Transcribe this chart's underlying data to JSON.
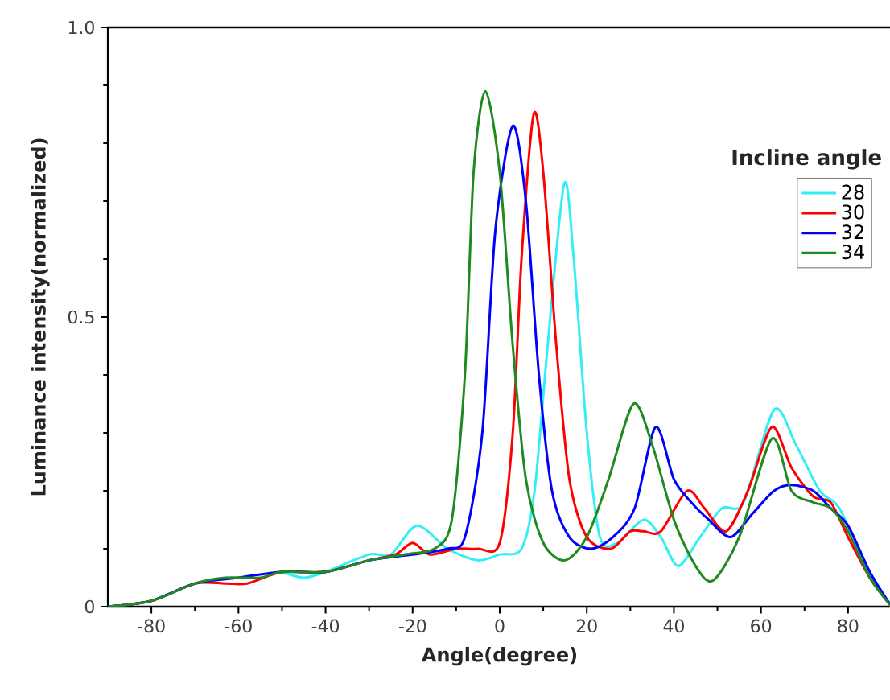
{
  "chart_data": {
    "type": "line",
    "xlabel": "Angle(degree)",
    "ylabel": "Luminance intensity(normalized)",
    "legend_title": "Incline angle",
    "xlim": [
      -90,
      90
    ],
    "xticks": [
      -80,
      -60,
      -40,
      -20,
      0,
      20,
      40,
      60,
      80
    ],
    "ylim": [
      0,
      1.0
    ],
    "yticks": [
      0,
      0.5,
      {
        "value": 1.0,
        "label": "1.0"
      }
    ],
    "legend": "top right",
    "grid": false,
    "series": [
      {
        "name": "28",
        "color": "#33eef5",
        "x": [
          -50,
          -45,
          -40,
          -30,
          -25,
          -19,
          -12,
          -5,
          0,
          5,
          8,
          11,
          14.8,
          17,
          20,
          23,
          27,
          33,
          37,
          41,
          46,
          51,
          56,
          63,
          68,
          73.5,
          78,
          84,
          90
        ],
        "values": [
          0.06,
          0.05,
          0.06,
          0.09,
          0.09,
          0.14,
          0.1,
          0.08,
          0.09,
          0.1,
          0.2,
          0.45,
          0.73,
          0.6,
          0.3,
          0.12,
          0.11,
          0.15,
          0.12,
          0.07,
          0.12,
          0.17,
          0.18,
          0.34,
          0.28,
          0.2,
          0.17,
          0.07,
          0
        ]
      },
      {
        "name": "30",
        "color": "#ff0000",
        "x": [
          -90,
          -80,
          -70,
          -63,
          -58,
          -50,
          -40,
          -30,
          -24,
          -20,
          -16,
          -10,
          -5,
          0,
          3,
          5,
          7.8,
          10,
          13,
          16,
          20,
          25.5,
          30,
          33,
          37,
          43,
          47,
          52,
          57,
          62.5,
          67,
          72,
          76,
          80,
          85,
          90
        ],
        "values": [
          0,
          0.01,
          0.04,
          0.04,
          0.04,
          0.06,
          0.06,
          0.08,
          0.09,
          0.11,
          0.09,
          0.1,
          0.1,
          0.11,
          0.3,
          0.6,
          0.85,
          0.75,
          0.45,
          0.22,
          0.12,
          0.1,
          0.13,
          0.13,
          0.13,
          0.2,
          0.17,
          0.13,
          0.2,
          0.31,
          0.24,
          0.19,
          0.18,
          0.12,
          0.05,
          0
        ]
      },
      {
        "name": "32",
        "color": "#0000ff",
        "x": [
          -90,
          -80,
          -70,
          -60,
          -50,
          -40,
          -30,
          -20,
          -12,
          -8,
          -4,
          -1,
          3,
          6,
          9,
          12,
          16,
          21,
          26,
          31,
          35.8,
          40,
          44,
          48,
          53,
          58,
          63,
          67,
          72,
          76,
          80,
          85,
          90
        ],
        "values": [
          0,
          0.01,
          0.04,
          0.05,
          0.06,
          0.06,
          0.08,
          0.09,
          0.1,
          0.12,
          0.3,
          0.65,
          0.83,
          0.7,
          0.4,
          0.2,
          0.12,
          0.1,
          0.12,
          0.17,
          0.31,
          0.22,
          0.18,
          0.15,
          0.12,
          0.16,
          0.2,
          0.21,
          0.2,
          0.17,
          0.14,
          0.06,
          0
        ]
      },
      {
        "name": "34",
        "color": "#1f8a1f",
        "x": [
          -90,
          -80,
          -70,
          -63,
          -55,
          -50,
          -40,
          -30,
          -22,
          -15,
          -11,
          -8,
          -6,
          -3.3,
          0,
          3,
          6,
          10,
          15,
          20,
          25,
          30.7,
          35,
          40,
          45,
          49,
          55,
          62.5,
          67,
          72,
          76,
          80,
          85,
          90
        ],
        "values": [
          0,
          0.01,
          0.04,
          0.05,
          0.05,
          0.06,
          0.06,
          0.08,
          0.09,
          0.1,
          0.15,
          0.4,
          0.75,
          0.89,
          0.75,
          0.45,
          0.22,
          0.11,
          0.08,
          0.12,
          0.22,
          0.35,
          0.28,
          0.15,
          0.07,
          0.045,
          0.12,
          0.29,
          0.2,
          0.18,
          0.17,
          0.13,
          0.05,
          0
        ]
      }
    ]
  }
}
